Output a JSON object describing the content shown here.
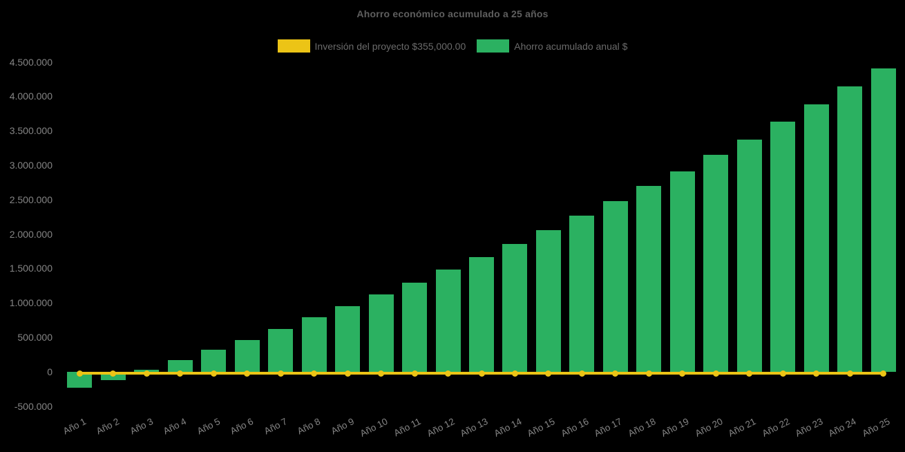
{
  "title": "Ahorro económico acumulado a 25 años",
  "colors": {
    "background": "#000000",
    "bar_green": "#2bb161",
    "line_yellow": "#ecc416",
    "title_text": "#5f5f5f",
    "legend_text": "#6b6b6b",
    "tick_text": "#858585"
  },
  "legend": {
    "items": [
      {
        "label": "Inversión del proyecto $355,000.00",
        "color": "#ecc416",
        "marker": "rect"
      },
      {
        "label": "Ahorro acumulado anual $",
        "color": "#2bb161",
        "marker": "rect"
      }
    ]
  },
  "chart_data": {
    "type": "bar",
    "title": "Ahorro económico acumulado a 25 años",
    "categories": [
      "Año 1",
      "Año 2",
      "Año 3",
      "Año 4",
      "Año 5",
      "Año 6",
      "Año 7",
      "Año 8",
      "Año 9",
      "Año 10",
      "Año 11",
      "Año 12",
      "Año 13",
      "Año 14",
      "Año 15",
      "Año 16",
      "Año 17",
      "Año 18",
      "Año 19",
      "Año 20",
      "Año 21",
      "Año 22",
      "Año 23",
      "Año 24",
      "Año 25"
    ],
    "series": [
      {
        "name": "Inversión del proyecto $355,000.00",
        "type": "line",
        "color": "#ecc416",
        "point_style": "circle",
        "values": [
          0,
          0,
          0,
          0,
          0,
          0,
          0,
          0,
          0,
          0,
          0,
          0,
          0,
          0,
          0,
          0,
          0,
          0,
          0,
          0,
          0,
          0,
          0,
          0,
          0
        ]
      },
      {
        "name": "Ahorro acumulado anual $",
        "type": "bar",
        "color": "#2bb161",
        "values": [
          -235000,
          -120000,
          30000,
          170000,
          320000,
          462000,
          620000,
          790000,
          955000,
          1120000,
          1295000,
          1478000,
          1665000,
          1858000,
          2058000,
          2265000,
          2478000,
          2696000,
          2913000,
          3150000,
          3375000,
          3627000,
          3884000,
          4144000,
          4405000
        ]
      }
    ],
    "ylim": [
      -500000,
      4500000
    ],
    "ytick_step": 500000,
    "ytick_values": [
      4500000,
      4000000,
      3500000,
      3000000,
      2500000,
      2000000,
      1500000,
      1000000,
      500000,
      0,
      -500000
    ],
    "ytick_labels": [
      "4.500.000",
      "4.000.000",
      "3.500.000",
      "3.000.000",
      "2.500.000",
      "2.000.000",
      "1.500.000",
      "1.000.000",
      "500.000",
      "0",
      "-500.000"
    ],
    "grid": false,
    "legend_position": "top",
    "x_label_rotation_deg": -27
  }
}
